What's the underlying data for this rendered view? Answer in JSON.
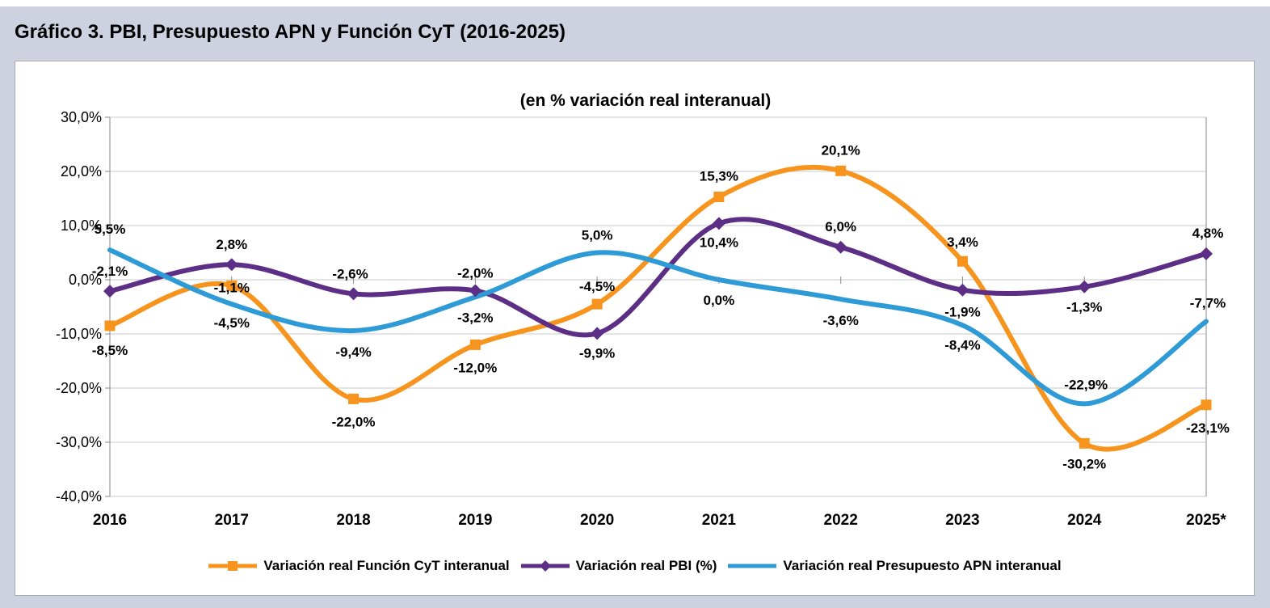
{
  "chart_data": {
    "type": "line",
    "title": "Gráfico 3. PBI, Presupuesto APN y Función CyT (2016-2025)",
    "subtitle": "(en % variación real interanual)",
    "categories": [
      "2016",
      "2017",
      "2018",
      "2019",
      "2020",
      "2021",
      "2022",
      "2023",
      "2024",
      "2025*"
    ],
    "y_axis": {
      "min": -40,
      "max": 30,
      "step": 10,
      "tick_values": [
        30,
        20,
        10,
        0,
        -10,
        -20,
        -30,
        -40
      ],
      "tick_labels": [
        "30,0%",
        "20,0%",
        "10,0%",
        "0,0%",
        "-10,0%",
        "-20,0%",
        "-30,0%",
        "-40,0%"
      ]
    },
    "grid": true,
    "smooth": true,
    "legend_position": "bottom",
    "series": [
      {
        "name": "Variación real Función CyT interanual",
        "color": "#F7941E",
        "marker": "square",
        "values": [
          -8.5,
          -1.1,
          -22.0,
          -12.0,
          -4.5,
          15.3,
          20.1,
          3.4,
          -30.2,
          -23.1
        ],
        "labels": [
          "-8,5%",
          "-1,1%",
          "-22,0%",
          "-12,0%",
          "-4,5%",
          "15,3%",
          "20,1%",
          "3,4%",
          "-30,2%",
          "-23,1%"
        ],
        "label_offsets": [
          [
            0,
            36
          ],
          [
            0,
            8
          ],
          [
            0,
            34
          ],
          [
            0,
            34
          ],
          [
            0,
            -16
          ],
          [
            0,
            -20
          ],
          [
            0,
            -20
          ],
          [
            0,
            -18
          ],
          [
            0,
            31
          ],
          [
            2,
            34
          ]
        ]
      },
      {
        "name": "Variación real PBI (%)",
        "color": "#5C2E86",
        "marker": "diamond",
        "values": [
          -2.1,
          2.8,
          -2.6,
          -2.0,
          -9.9,
          10.4,
          6.0,
          -1.9,
          -1.3,
          4.8
        ],
        "labels": [
          "-2,1%",
          "2,8%",
          "-2,6%",
          "-2,0%",
          "-9,9%",
          "10,4%",
          "6,0%",
          "-1,9%",
          "-1,3%",
          "4,8%"
        ],
        "label_offsets": [
          [
            0,
            -19
          ],
          [
            0,
            -19
          ],
          [
            -4,
            -19
          ],
          [
            0,
            -16
          ],
          [
            0,
            30
          ],
          [
            0,
            29
          ],
          [
            0,
            -20
          ],
          [
            0,
            33
          ],
          [
            0,
            31
          ],
          [
            2,
            -20
          ]
        ]
      },
      {
        "name": "Variación real Presupuesto APN interanual",
        "color": "#2E9BD6",
        "marker": "none",
        "values": [
          5.5,
          -4.5,
          -9.4,
          -3.2,
          5.0,
          0.0,
          -3.6,
          -8.4,
          -22.9,
          -7.7
        ],
        "labels": [
          "5,5%",
          "-4,5%",
          "-9,4%",
          "-3,2%",
          "5,0%",
          "0,0%",
          "-3,6%",
          "-8,4%",
          "-22,9%",
          "-7,7%"
        ],
        "label_offsets": [
          [
            0,
            -20
          ],
          [
            0,
            29
          ],
          [
            0,
            32
          ],
          [
            0,
            31
          ],
          [
            0,
            -16
          ],
          [
            0,
            31
          ],
          [
            0,
            32
          ],
          [
            0,
            30
          ],
          [
            2,
            -18
          ],
          [
            2,
            -17
          ]
        ]
      }
    ],
    "colors": {
      "panel_background": "#CDD1E0",
      "plot_background": "#FFFFFF",
      "gridline": "#C8C8C8",
      "axis": "#8A8A8A",
      "text": "#000000"
    }
  }
}
